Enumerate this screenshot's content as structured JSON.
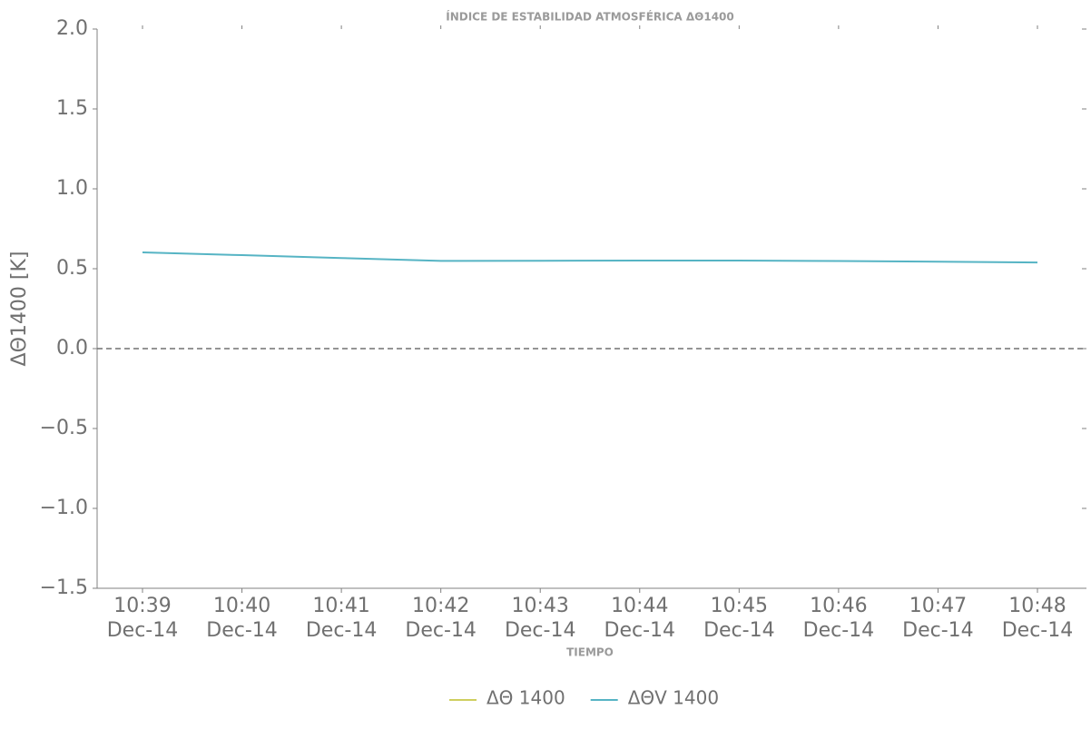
{
  "chart_data": {
    "type": "line",
    "title": "ÍNDICE DE ESTABILIDAD ATMOSFÉRICA ΔΘ1400",
    "x_label": "TIEMPO",
    "y_label": "ΔΘ1400 [K]",
    "categories": [
      [
        "10:39",
        "Dec-14"
      ],
      [
        "10:40",
        "Dec-14"
      ],
      [
        "10:41",
        "Dec-14"
      ],
      [
        "10:42",
        "Dec-14"
      ],
      [
        "10:43",
        "Dec-14"
      ],
      [
        "10:44",
        "Dec-14"
      ],
      [
        "10:45",
        "Dec-14"
      ],
      [
        "10:46",
        "Dec-14"
      ],
      [
        "10:47",
        "Dec-14"
      ],
      [
        "10:48",
        "Dec-14"
      ]
    ],
    "series": [
      {
        "name": "ΔΘ 1400",
        "color": "#cfcf5f",
        "values": [
          null,
          null,
          null,
          null,
          null,
          null,
          null,
          null,
          null,
          null
        ]
      },
      {
        "name": "ΔΘV 1400",
        "color": "#56b4c4",
        "values": [
          0.602,
          0.585,
          0.567,
          0.549,
          0.55,
          0.551,
          0.551,
          0.548,
          0.544,
          0.539
        ]
      }
    ],
    "ylim": [
      -1.5,
      2.0
    ],
    "yticks": [
      {
        "value": -1.5,
        "label": "−1.5"
      },
      {
        "value": -1.0,
        "label": "−1.0"
      },
      {
        "value": -0.5,
        "label": "−0.5"
      },
      {
        "value": 0,
        "label": "0.0"
      },
      0.5,
      {
        "value": 1.0,
        "label": "1.0"
      },
      1.5,
      {
        "value": 2.0,
        "label": "2.0"
      }
    ],
    "reference_line": 0,
    "legend": "bottom"
  }
}
